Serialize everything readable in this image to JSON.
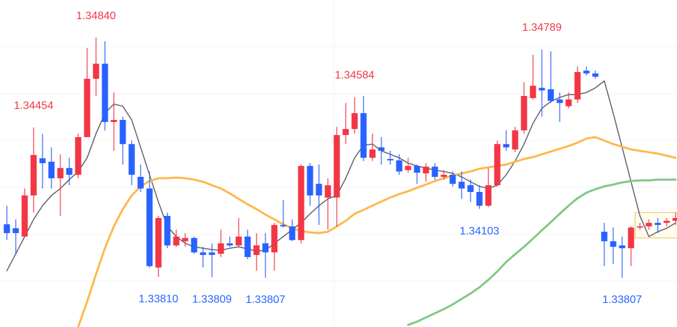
{
  "chart_data": {
    "type": "candlestick",
    "up_color": "#f23645",
    "down_color": "#2962ff",
    "ylim": [
      1.33595,
      1.35002
    ],
    "open": [
      1.34037,
      1.3402,
      1.33984,
      1.34161,
      1.34321,
      1.34306,
      1.34235,
      1.34279,
      1.3425,
      1.34412,
      1.34663,
      1.34728,
      1.34477,
      1.34486,
      1.34382,
      1.34241,
      1.34191,
      1.33851,
      1.34073,
      1.33946,
      1.33964,
      1.33978,
      1.33916,
      1.33916,
      1.3391,
      1.33955,
      1.33946,
      1.33984,
      1.33905,
      1.33955,
      1.33916,
      1.34034,
      1.34028,
      1.33969,
      1.34288,
      1.34211,
      1.34152,
      1.34152,
      1.34421,
      1.34447,
      1.34515,
      1.34323,
      1.34368,
      1.34318,
      1.34312,
      1.3427,
      1.34288,
      1.34256,
      1.34285,
      1.34241,
      1.3425,
      1.3422,
      1.34205,
      1.34176,
      1.34117,
      1.34205,
      1.34382,
      1.34359,
      1.34441,
      1.3458,
      1.34624,
      1.34618,
      1.34574,
      1.34545,
      1.34574,
      1.34698,
      1.34686,
      1.34005,
      1.33964,
      1.33946,
      1.33934,
      1.34023,
      1.34028,
      1.34043,
      1.34043,
      1.34052
    ],
    "high": [
      1.34117,
      1.34058,
      1.34191,
      1.34454,
      1.34427,
      1.34368,
      1.34338,
      1.34323,
      1.34427,
      1.34795,
      1.3484,
      1.34825,
      1.34604,
      1.345,
      1.34397,
      1.34294,
      1.34264,
      1.34073,
      1.34087,
      1.34014,
      1.33999,
      1.33984,
      1.3394,
      1.33955,
      1.34014,
      1.33984,
      1.34064,
      1.34014,
      1.33999,
      1.33999,
      1.34043,
      1.34141,
      1.34058,
      1.34294,
      1.343,
      1.34294,
      1.34235,
      1.34456,
      1.34559,
      1.34584,
      1.34589,
      1.34427,
      1.34412,
      1.34353,
      1.34338,
      1.34323,
      1.34294,
      1.343,
      1.343,
      1.3427,
      1.34264,
      1.34264,
      1.34229,
      1.34205,
      1.34279,
      1.34397,
      1.34441,
      1.34456,
      1.34648,
      1.34766,
      1.34789,
      1.34781,
      1.34604,
      1.34604,
      1.34716,
      1.34716,
      1.34698,
      1.34043,
      1.34023,
      1.33984,
      1.34028,
      1.34043,
      1.34058,
      1.34064,
      1.34064,
      1.34087
    ],
    "low": [
      1.33969,
      1.3391,
      1.33984,
      1.34087,
      1.34191,
      1.34191,
      1.34073,
      1.34205,
      1.34235,
      1.34412,
      1.34589,
      1.34441,
      1.34353,
      1.34294,
      1.34205,
      1.34176,
      1.33851,
      1.3381,
      1.33934,
      1.3394,
      1.3394,
      1.3391,
      1.33851,
      1.33809,
      1.33896,
      1.3394,
      1.3394,
      1.33887,
      1.33837,
      1.33807,
      1.33837,
      1.34023,
      1.33964,
      1.33955,
      1.34117,
      1.34034,
      1.34014,
      1.34028,
      1.34382,
      1.34427,
      1.34309,
      1.34309,
      1.34294,
      1.34294,
      1.3425,
      1.34259,
      1.34211,
      1.3422,
      1.34229,
      1.34229,
      1.342,
      1.34146,
      1.34132,
      1.34103,
      1.34111,
      1.342,
      1.34353,
      1.34347,
      1.34427,
      1.34574,
      1.345,
      1.34559,
      1.34477,
      1.34536,
      1.34559,
      1.34677,
      1.34663,
      1.33857,
      1.33866,
      1.33807,
      1.33857,
      1.34014,
      1.34014,
      1.33999,
      1.34028,
      1.34034
    ],
    "close": [
      1.33999,
      1.33999,
      1.34161,
      1.34335,
      1.343,
      1.34235,
      1.34279,
      1.3425,
      1.34412,
      1.34663,
      1.34728,
      1.34477,
      1.34486,
      1.34382,
      1.3425,
      1.34191,
      1.33857,
      1.34064,
      1.33946,
      1.33984,
      1.33978,
      1.33916,
      1.33905,
      1.33905,
      1.33955,
      1.33946,
      1.33984,
      1.33896,
      1.33946,
      1.33916,
      1.34034,
      1.34028,
      1.33969,
      1.34288,
      1.34161,
      1.34161,
      1.34205,
      1.34421,
      1.34447,
      1.34515,
      1.34323,
      1.34359,
      1.34353,
      1.34312,
      1.34264,
      1.34288,
      1.34259,
      1.34285,
      1.34241,
      1.3425,
      1.34211,
      1.34191,
      1.34176,
      1.34117,
      1.34205,
      1.34382,
      1.34368,
      1.34441,
      1.34589,
      1.34633,
      1.34613,
      1.34568,
      1.34559,
      1.34574,
      1.34692,
      1.34686,
      1.34672,
      1.33964,
      1.3394,
      1.33934,
      1.34023,
      1.34028,
      1.34043,
      1.34034,
      1.34052,
      1.34064
    ],
    "lines": [
      {
        "color": "#5d606b",
        "width": 1.5,
        "values": [
          1.33837,
          1.3391,
          1.33984,
          1.34058,
          1.34117,
          1.34161,
          1.34191,
          1.34229,
          1.34264,
          1.34323,
          1.34427,
          1.34515,
          1.34554,
          1.34545,
          1.34486,
          1.34368,
          1.3425,
          1.34132,
          1.34028,
          1.33984,
          1.33955,
          1.3394,
          1.33934,
          1.33928,
          1.33925,
          1.33934,
          1.3394,
          1.33931,
          1.33922,
          1.33925,
          1.33955,
          1.33984,
          1.34014,
          1.34043,
          1.34082,
          1.34117,
          1.34146,
          1.34161,
          1.34235,
          1.34323,
          1.34377,
          1.34382,
          1.34353,
          1.34338,
          1.34323,
          1.343,
          1.34288,
          1.34279,
          1.3427,
          1.34264,
          1.34256,
          1.34241,
          1.3422,
          1.342,
          1.34191,
          1.34205,
          1.3425,
          1.34309,
          1.34382,
          1.34471,
          1.34536,
          1.34565,
          1.34583,
          1.34595,
          1.34595,
          1.34604,
          1.34624,
          1.34654,
          1.34515,
          1.34368,
          1.3422,
          1.34073,
          1.33984,
          1.34005,
          1.3402,
          1.34043
        ]
      },
      {
        "color": "#ffb74d",
        "width": 3,
        "values": [
          null,
          null,
          null,
          null,
          null,
          null,
          null,
          null,
          1.33595,
          1.33704,
          1.33822,
          1.33934,
          1.34028,
          1.34102,
          1.34161,
          1.342,
          1.34223,
          1.34235,
          1.34235,
          1.34238,
          1.34235,
          1.34229,
          1.3422,
          1.34205,
          1.34191,
          1.3417,
          1.34146,
          1.34123,
          1.34102,
          1.34079,
          1.34058,
          1.34037,
          1.3402,
          1.34008,
          1.34002,
          1.33999,
          1.34005,
          1.34028,
          1.34052,
          1.34082,
          1.34099,
          1.34117,
          1.34135,
          1.34152,
          1.34167,
          1.34179,
          1.34194,
          1.34208,
          1.34223,
          1.34235,
          1.34247,
          1.34256,
          1.34264,
          1.34276,
          1.34282,
          1.34288,
          1.34294,
          1.34306,
          1.34318,
          1.34326,
          1.34338,
          1.3435,
          1.34362,
          1.34374,
          1.34388,
          1.34406,
          1.34412,
          1.34397,
          1.34382,
          1.34371,
          1.34359,
          1.34353,
          1.34347,
          1.34341,
          1.34332,
          1.34323
        ]
      },
      {
        "color": "#81c784",
        "width": 3,
        "values": [
          null,
          null,
          null,
          null,
          null,
          null,
          null,
          null,
          null,
          null,
          null,
          null,
          null,
          null,
          null,
          null,
          null,
          null,
          null,
          null,
          null,
          null,
          null,
          null,
          null,
          null,
          null,
          null,
          null,
          null,
          null,
          null,
          null,
          null,
          null,
          null,
          null,
          null,
          null,
          null,
          null,
          null,
          null,
          null,
          null,
          1.33604,
          1.33618,
          1.33636,
          1.33654,
          1.33672,
          1.33692,
          1.33716,
          1.33739,
          1.33766,
          1.33798,
          1.33834,
          1.33875,
          1.33908,
          1.3394,
          1.33975,
          1.34011,
          1.34046,
          1.34082,
          1.34117,
          1.34149,
          1.34173,
          1.34188,
          1.342,
          1.34208,
          1.34217,
          1.34223,
          1.34226,
          1.34226,
          1.34229,
          1.34229,
          1.34229
        ]
      }
    ],
    "annotations": [
      {
        "text": "1.34840",
        "index": 10,
        "at": "high"
      },
      {
        "text": "1.34454",
        "index": 3,
        "at": "high"
      },
      {
        "text": "1.34584",
        "index": 39,
        "at": "high"
      },
      {
        "text": "1.34789",
        "index": 60,
        "at": "high"
      },
      {
        "text": "1.33810",
        "index": 17,
        "at": "low"
      },
      {
        "text": "1.33809",
        "index": 23,
        "at": "low"
      },
      {
        "text": "1.33807",
        "index": 29,
        "at": "low"
      },
      {
        "text": "1.34103",
        "index": 53,
        "at": "low"
      },
      {
        "text": "1.33807",
        "index": 69,
        "at": "low"
      }
    ]
  }
}
